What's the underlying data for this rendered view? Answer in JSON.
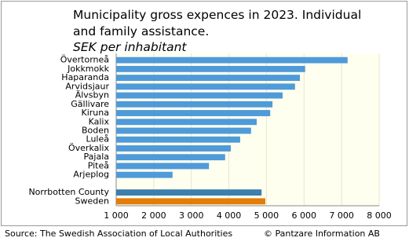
{
  "chart_data": {
    "type": "bar",
    "orientation": "horizontal",
    "title_lines": [
      "Municipality gross expences in 2023. Individual",
      "and family assistance."
    ],
    "subtitle": "SEK per inhabitant",
    "categories": [
      "Övertorneå",
      "Jokkmokk",
      "Haparanda",
      "Arvidsjaur",
      "Älvsbyn",
      "Gällivare",
      "Kiruna",
      "Kalix",
      "Boden",
      "Luleå",
      "Överkalix",
      "Pajala",
      "Piteå",
      "Arjeplog",
      null,
      "Norrbotten County",
      "Sweden"
    ],
    "values": [
      7160,
      6030,
      5890,
      5760,
      5430,
      5160,
      5100,
      4740,
      4590,
      4300,
      4050,
      3900,
      3470,
      2500,
      null,
      4870,
      4970
    ],
    "colors": [
      "#4f9ad8",
      "#4f9ad8",
      "#4f9ad8",
      "#4f9ad8",
      "#4f9ad8",
      "#4f9ad8",
      "#4f9ad8",
      "#4f9ad8",
      "#4f9ad8",
      "#4f9ad8",
      "#4f9ad8",
      "#4f9ad8",
      "#4f9ad8",
      "#4f9ad8",
      null,
      "#3a7fae",
      "#e27c0a"
    ],
    "xlim": [
      1000,
      8000
    ],
    "xticks": [
      {
        "value": 1000,
        "label": "1 000"
      },
      {
        "value": 2000,
        "label": "2 000"
      },
      {
        "value": 3000,
        "label": "3 000"
      },
      {
        "value": 4000,
        "label": "4 000"
      },
      {
        "value": 5000,
        "label": "5 000"
      },
      {
        "value": 6000,
        "label": "6 000"
      },
      {
        "value": 7000,
        "label": "7 000"
      },
      {
        "value": 8000,
        "label": "8 000"
      }
    ],
    "grid": true,
    "source": "Source: The Swedish Association of Local Authorities",
    "copyright": "© Pantzare Information AB"
  }
}
